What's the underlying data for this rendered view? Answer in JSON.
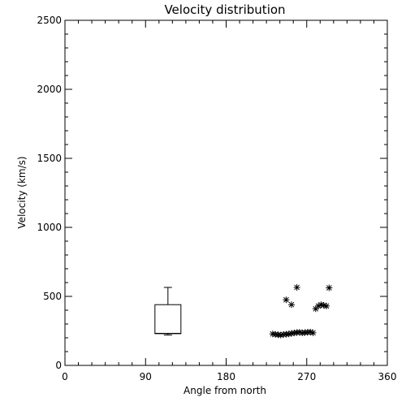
{
  "chart_data": {
    "type": "scatter",
    "title": "Velocity distribution",
    "xlabel": "Angle from north",
    "ylabel": "Velocity (km/s)",
    "xlim": [
      0,
      360
    ],
    "ylim": [
      0,
      2500
    ],
    "x_ticks": [
      0,
      90,
      180,
      270,
      360
    ],
    "y_ticks": [
      0,
      500,
      1000,
      1500,
      2000,
      2500
    ],
    "grid": false,
    "box": {
      "x": 115,
      "min": 220,
      "q1": 230,
      "median": 232,
      "q3": 440,
      "max": 565
    },
    "points": [
      {
        "x": 232,
        "y": 228
      },
      {
        "x": 235,
        "y": 225
      },
      {
        "x": 238,
        "y": 222
      },
      {
        "x": 241,
        "y": 220
      },
      {
        "x": 244,
        "y": 224
      },
      {
        "x": 247,
        "y": 226
      },
      {
        "x": 250,
        "y": 228
      },
      {
        "x": 253,
        "y": 232
      },
      {
        "x": 256,
        "y": 235
      },
      {
        "x": 259,
        "y": 238
      },
      {
        "x": 262,
        "y": 240
      },
      {
        "x": 265,
        "y": 235
      },
      {
        "x": 268,
        "y": 238
      },
      {
        "x": 271,
        "y": 240
      },
      {
        "x": 274,
        "y": 242
      },
      {
        "x": 277,
        "y": 236
      },
      {
        "x": 247,
        "y": 475
      },
      {
        "x": 253,
        "y": 440
      },
      {
        "x": 259,
        "y": 565
      },
      {
        "x": 280,
        "y": 410
      },
      {
        "x": 283,
        "y": 430
      },
      {
        "x": 286,
        "y": 440
      },
      {
        "x": 289,
        "y": 435
      },
      {
        "x": 292,
        "y": 430
      },
      {
        "x": 295,
        "y": 562
      }
    ]
  }
}
